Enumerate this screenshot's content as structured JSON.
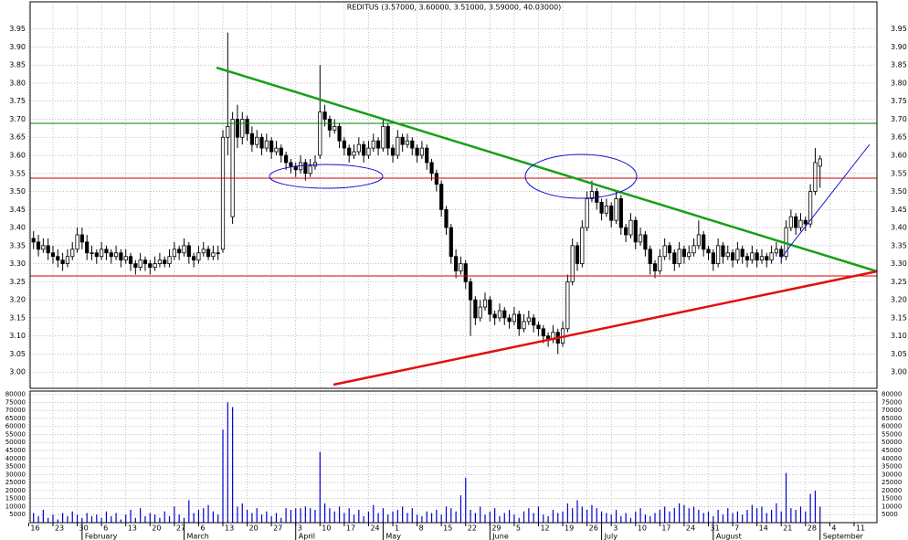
{
  "chart_data": {
    "type": "candlestick",
    "title": "REDITUS (3.57000, 3.60000, 3.51000, 3.59000, 40.03000)",
    "categories": [
      "16",
      null,
      null,
      null,
      null,
      "23",
      null,
      null,
      null,
      null,
      "30",
      null,
      null,
      null,
      null,
      "6",
      null,
      null,
      null,
      null,
      "13",
      null,
      null,
      null,
      null,
      "20",
      null,
      null,
      null,
      null,
      "27",
      null,
      null,
      null,
      null,
      "6",
      null,
      null,
      null,
      null,
      "13",
      null,
      null,
      null,
      null,
      "20",
      null,
      null,
      null,
      null,
      "27",
      null,
      null,
      null,
      null,
      "3",
      null,
      null,
      null,
      null,
      "10",
      null,
      null,
      null,
      null,
      "17",
      null,
      null,
      null,
      null,
      "24",
      null,
      null,
      null,
      null,
      "1",
      null,
      null,
      null,
      null,
      "8",
      null,
      null,
      null,
      null,
      "15",
      null,
      null,
      null,
      null,
      "22",
      null,
      null,
      null,
      null,
      "29",
      null,
      null,
      null,
      null,
      "5",
      null,
      null,
      null,
      null,
      "12",
      null,
      null,
      null,
      null,
      "19",
      null,
      null,
      null,
      null,
      "26",
      null,
      null,
      null,
      null,
      "3",
      null,
      null,
      null,
      null,
      "10",
      null,
      null,
      null,
      null,
      "17",
      null,
      null,
      null,
      null,
      "24",
      null,
      null,
      null,
      null,
      "31",
      null,
      null,
      null,
      null,
      "7",
      null,
      null,
      null,
      null,
      "14",
      null,
      null,
      null,
      null,
      "21",
      null,
      null,
      null,
      null,
      "28",
      null,
      null,
      null,
      null,
      "4",
      null,
      null,
      null,
      null,
      "11",
      null,
      null,
      null,
      null
    ],
    "months": [
      "February",
      "March",
      "April",
      "May",
      "June",
      "July",
      "August",
      "September"
    ],
    "ohlc": [
      null,
      [
        3.37,
        3.39,
        3.34,
        3.36
      ],
      [
        3.36,
        3.38,
        3.32,
        3.34
      ],
      [
        3.34,
        3.37,
        3.33,
        3.35
      ],
      [
        3.35,
        3.37,
        3.31,
        3.33
      ],
      [
        3.33,
        3.35,
        3.3,
        3.32
      ],
      [
        3.32,
        3.34,
        3.29,
        3.31
      ],
      [
        3.31,
        3.33,
        3.28,
        3.3
      ],
      [
        3.3,
        3.34,
        3.29,
        3.32
      ],
      [
        3.32,
        3.36,
        3.31,
        3.34
      ],
      [
        3.34,
        3.4,
        3.33,
        3.38
      ],
      [
        3.38,
        3.4,
        3.34,
        3.36
      ],
      [
        3.36,
        3.38,
        3.31,
        3.33
      ],
      [
        3.33,
        3.35,
        3.31,
        3.33
      ],
      [
        3.33,
        3.34,
        3.3,
        3.32
      ],
      [
        3.32,
        3.36,
        3.31,
        3.34
      ],
      [
        3.34,
        3.35,
        3.31,
        3.33
      ],
      [
        3.33,
        3.34,
        3.3,
        3.32
      ],
      [
        3.32,
        3.35,
        3.31,
        3.33
      ],
      [
        3.33,
        3.34,
        3.29,
        3.31
      ],
      [
        3.31,
        3.34,
        3.3,
        3.32
      ],
      [
        3.32,
        3.33,
        3.28,
        3.3
      ],
      [
        3.3,
        3.31,
        3.27,
        3.29
      ],
      [
        3.29,
        3.33,
        3.28,
        3.31
      ],
      [
        3.31,
        3.32,
        3.28,
        3.3
      ],
      [
        3.3,
        3.31,
        3.27,
        3.29
      ],
      [
        3.29,
        3.32,
        3.28,
        3.3
      ],
      [
        3.3,
        3.33,
        3.29,
        3.31
      ],
      [
        3.31,
        3.32,
        3.29,
        3.3
      ],
      [
        3.3,
        3.34,
        3.29,
        3.32
      ],
      [
        3.32,
        3.36,
        3.31,
        3.34
      ],
      [
        3.34,
        3.35,
        3.31,
        3.33
      ],
      [
        3.33,
        3.37,
        3.32,
        3.35
      ],
      [
        3.35,
        3.36,
        3.3,
        3.32
      ],
      [
        3.32,
        3.33,
        3.29,
        3.31
      ],
      [
        3.31,
        3.35,
        3.3,
        3.33
      ],
      [
        3.33,
        3.36,
        3.32,
        3.34
      ],
      [
        3.34,
        3.35,
        3.31,
        3.32
      ],
      [
        3.32,
        3.35,
        3.31,
        3.33
      ],
      [
        3.33,
        3.35,
        3.31,
        3.33
      ],
      [
        3.34,
        3.67,
        3.33,
        3.65
      ],
      [
        3.65,
        3.94,
        3.6,
        3.68
      ],
      [
        3.43,
        3.72,
        3.41,
        3.7
      ],
      [
        3.7,
        3.74,
        3.62,
        3.65
      ],
      [
        3.65,
        3.72,
        3.63,
        3.7
      ],
      [
        3.7,
        3.71,
        3.64,
        3.66
      ],
      [
        3.66,
        3.68,
        3.61,
        3.63
      ],
      [
        3.63,
        3.67,
        3.62,
        3.65
      ],
      [
        3.65,
        3.66,
        3.6,
        3.62
      ],
      [
        3.62,
        3.66,
        3.61,
        3.64
      ],
      [
        3.64,
        3.65,
        3.59,
        3.61
      ],
      [
        3.61,
        3.64,
        3.6,
        3.62
      ],
      [
        3.62,
        3.63,
        3.58,
        3.6
      ],
      [
        3.6,
        3.61,
        3.56,
        3.58
      ],
      [
        3.58,
        3.59,
        3.55,
        3.57
      ],
      [
        3.57,
        3.58,
        3.54,
        3.56
      ],
      [
        3.56,
        3.6,
        3.55,
        3.58
      ],
      [
        3.58,
        3.59,
        3.53,
        3.55
      ],
      [
        3.55,
        3.59,
        3.54,
        3.57
      ],
      [
        3.57,
        3.6,
        3.56,
        3.58
      ],
      [
        3.6,
        3.85,
        3.59,
        3.72
      ],
      [
        3.72,
        3.74,
        3.68,
        3.7
      ],
      [
        3.7,
        3.71,
        3.65,
        3.67
      ],
      [
        3.67,
        3.7,
        3.66,
        3.68
      ],
      [
        3.68,
        3.69,
        3.62,
        3.64
      ],
      [
        3.64,
        3.65,
        3.6,
        3.62
      ],
      [
        3.62,
        3.63,
        3.58,
        3.6
      ],
      [
        3.6,
        3.63,
        3.59,
        3.61
      ],
      [
        3.61,
        3.65,
        3.6,
        3.63
      ],
      [
        3.63,
        3.64,
        3.58,
        3.6
      ],
      [
        3.6,
        3.64,
        3.59,
        3.62
      ],
      [
        3.62,
        3.66,
        3.61,
        3.64
      ],
      [
        3.64,
        3.65,
        3.6,
        3.62
      ],
      [
        3.62,
        3.7,
        3.61,
        3.68
      ],
      [
        3.68,
        3.69,
        3.6,
        3.62
      ],
      [
        3.62,
        3.63,
        3.58,
        3.6
      ],
      [
        3.6,
        3.67,
        3.59,
        3.65
      ],
      [
        3.65,
        3.66,
        3.61,
        3.63
      ],
      [
        3.63,
        3.66,
        3.62,
        3.64
      ],
      [
        3.64,
        3.65,
        3.6,
        3.62
      ],
      [
        3.62,
        3.63,
        3.58,
        3.6
      ],
      [
        3.6,
        3.64,
        3.59,
        3.62
      ],
      [
        3.62,
        3.63,
        3.56,
        3.58
      ],
      [
        3.58,
        3.59,
        3.53,
        3.55
      ],
      [
        3.55,
        3.56,
        3.5,
        3.52
      ],
      [
        3.52,
        3.53,
        3.43,
        3.45
      ],
      [
        3.45,
        3.46,
        3.38,
        3.4
      ],
      [
        3.4,
        3.41,
        3.3,
        3.32
      ],
      [
        3.32,
        3.34,
        3.26,
        3.28
      ],
      [
        3.28,
        3.32,
        3.27,
        3.3
      ],
      [
        3.3,
        3.31,
        3.23,
        3.25
      ],
      [
        3.25,
        3.26,
        3.1,
        3.2
      ],
      [
        3.2,
        3.21,
        3.13,
        3.15
      ],
      [
        3.15,
        3.2,
        3.14,
        3.18
      ],
      [
        3.18,
        3.22,
        3.17,
        3.2
      ],
      [
        3.2,
        3.21,
        3.14,
        3.16
      ],
      [
        3.16,
        3.17,
        3.13,
        3.15
      ],
      [
        3.15,
        3.19,
        3.14,
        3.17
      ],
      [
        3.17,
        3.18,
        3.13,
        3.15
      ],
      [
        3.15,
        3.16,
        3.12,
        3.14
      ],
      [
        3.14,
        3.18,
        3.13,
        3.16
      ],
      [
        3.16,
        3.17,
        3.1,
        3.12
      ],
      [
        3.12,
        3.16,
        3.11,
        3.14
      ],
      [
        3.14,
        3.17,
        3.13,
        3.15
      ],
      [
        3.15,
        3.16,
        3.11,
        3.13
      ],
      [
        3.13,
        3.14,
        3.1,
        3.12
      ],
      [
        3.12,
        3.13,
        3.08,
        3.1
      ],
      [
        3.1,
        3.11,
        3.07,
        3.09
      ],
      [
        3.09,
        3.13,
        3.08,
        3.11
      ],
      [
        3.11,
        3.12,
        3.05,
        3.08
      ],
      [
        3.08,
        3.14,
        3.07,
        3.12
      ],
      [
        3.12,
        3.27,
        3.11,
        3.25
      ],
      [
        3.25,
        3.37,
        3.24,
        3.35
      ],
      [
        3.35,
        3.36,
        3.28,
        3.3
      ],
      [
        3.3,
        3.42,
        3.29,
        3.4
      ],
      [
        3.4,
        3.5,
        3.39,
        3.48
      ],
      [
        3.48,
        3.53,
        3.47,
        3.5
      ],
      [
        3.5,
        3.51,
        3.45,
        3.47
      ],
      [
        3.47,
        3.48,
        3.42,
        3.44
      ],
      [
        3.44,
        3.48,
        3.43,
        3.46
      ],
      [
        3.46,
        3.47,
        3.4,
        3.42
      ],
      [
        3.42,
        3.5,
        3.41,
        3.48
      ],
      [
        3.48,
        3.49,
        3.38,
        3.4
      ],
      [
        3.4,
        3.41,
        3.36,
        3.38
      ],
      [
        3.38,
        3.44,
        3.37,
        3.42
      ],
      [
        3.42,
        3.43,
        3.34,
        3.36
      ],
      [
        3.36,
        3.4,
        3.35,
        3.38
      ],
      [
        3.38,
        3.39,
        3.32,
        3.34
      ],
      [
        3.34,
        3.35,
        3.27,
        3.3
      ],
      [
        3.3,
        3.31,
        3.26,
        3.28
      ],
      [
        3.28,
        3.34,
        3.27,
        3.32
      ],
      [
        3.32,
        3.37,
        3.31,
        3.35
      ],
      [
        3.35,
        3.36,
        3.31,
        3.33
      ],
      [
        3.33,
        3.34,
        3.28,
        3.3
      ],
      [
        3.3,
        3.36,
        3.29,
        3.34
      ],
      [
        3.34,
        3.35,
        3.3,
        3.32
      ],
      [
        3.32,
        3.35,
        3.31,
        3.33
      ],
      [
        3.33,
        3.37,
        3.32,
        3.35
      ],
      [
        3.35,
        3.42,
        3.34,
        3.38
      ],
      [
        3.38,
        3.39,
        3.32,
        3.34
      ],
      [
        3.34,
        3.35,
        3.31,
        3.33
      ],
      [
        3.33,
        3.34,
        3.28,
        3.3
      ],
      [
        3.3,
        3.37,
        3.29,
        3.35
      ],
      [
        3.35,
        3.36,
        3.3,
        3.32
      ],
      [
        3.32,
        3.35,
        3.31,
        3.33
      ],
      [
        3.33,
        3.34,
        3.29,
        3.31
      ],
      [
        3.31,
        3.36,
        3.3,
        3.34
      ],
      [
        3.34,
        3.35,
        3.3,
        3.32
      ],
      [
        3.32,
        3.33,
        3.29,
        3.31
      ],
      [
        3.31,
        3.35,
        3.3,
        3.33
      ],
      [
        3.33,
        3.34,
        3.29,
        3.31
      ],
      [
        3.31,
        3.34,
        3.3,
        3.32
      ],
      [
        3.32,
        3.33,
        3.29,
        3.31
      ],
      [
        3.31,
        3.35,
        3.3,
        3.33
      ],
      [
        3.33,
        3.36,
        3.32,
        3.34
      ],
      [
        3.34,
        3.35,
        3.3,
        3.32
      ],
      [
        3.32,
        3.42,
        3.31,
        3.4
      ],
      [
        3.4,
        3.45,
        3.39,
        3.43
      ],
      [
        3.43,
        3.44,
        3.38,
        3.4
      ],
      [
        3.4,
        3.44,
        3.39,
        3.42
      ],
      [
        3.42,
        3.43,
        3.39,
        3.41
      ],
      [
        3.41,
        3.52,
        3.4,
        3.5
      ],
      [
        3.5,
        3.62,
        3.49,
        3.58
      ],
      [
        3.57,
        3.6,
        3.51,
        3.59
      ],
      null,
      null,
      null,
      null,
      null,
      null,
      null,
      null,
      null,
      null,
      null
    ],
    "volume": [
      null,
      6000,
      4000,
      8000,
      3000,
      5000,
      2000,
      6000,
      4000,
      7000,
      5000,
      3000,
      6000,
      4000,
      5000,
      3000,
      7000,
      4000,
      6000,
      2000,
      5000,
      8000,
      3000,
      9000,
      4000,
      6000,
      5000,
      3000,
      7000,
      4000,
      10000,
      5000,
      3000,
      14000,
      6000,
      8000,
      9000,
      11000,
      7000,
      5000,
      58000,
      75000,
      72000,
      10000,
      12000,
      8000,
      6000,
      9000,
      5000,
      7000,
      4000,
      6000,
      3000,
      9000,
      8000,
      9000,
      9000,
      10000,
      9000,
      8000,
      44000,
      12000,
      9000,
      7000,
      10000,
      6000,
      9000,
      5000,
      8000,
      4000,
      7000,
      11000,
      6000,
      9000,
      5000,
      7000,
      8000,
      10000,
      6000,
      9000,
      5000,
      4000,
      7000,
      6000,
      8000,
      5000,
      10000,
      9000,
      7000,
      17000,
      28000,
      8000,
      6000,
      10000,
      5000,
      7000,
      9000,
      4000,
      6000,
      8000,
      5000,
      3000,
      7000,
      9000,
      6000,
      10000,
      5000,
      4000,
      8000,
      6000,
      7000,
      12000,
      9000,
      14000,
      10000,
      8000,
      11000,
      9000,
      7000,
      6000,
      5000,
      8000,
      4000,
      6000,
      3000,
      7000,
      9000,
      5000,
      4000,
      6000,
      8000,
      10000,
      7000,
      9000,
      12000,
      11000,
      9000,
      10000,
      8000,
      6000,
      7000,
      4000,
      8000,
      5000,
      9000,
      6000,
      7000,
      5000,
      8000,
      11000,
      9000,
      10000,
      6000,
      8000,
      12000,
      7000,
      31000,
      9000,
      8000,
      10000,
      7000,
      18000,
      20000,
      10000,
      null,
      null,
      null,
      null,
      null,
      null,
      null,
      null,
      null,
      null,
      null
    ],
    "ylim": [
      2.955,
      4.025
    ],
    "yticks": [
      {
        "value": 3.0,
        "label": "3.00"
      },
      {
        "value": 3.05,
        "label": "3.05"
      },
      {
        "value": 3.1,
        "label": "3.10"
      },
      {
        "value": 3.15,
        "label": "3.15"
      },
      {
        "value": 3.2,
        "label": "3.20"
      },
      {
        "value": 3.25,
        "label": "3.25"
      },
      {
        "value": 3.3,
        "label": "3.30"
      },
      {
        "value": 3.35,
        "label": "3.35"
      },
      {
        "value": 3.4,
        "label": "3.40"
      },
      {
        "value": 3.45,
        "label": "3.45"
      },
      {
        "value": 3.5,
        "label": "3.50"
      },
      {
        "value": 3.55,
        "label": "3.55"
      },
      {
        "value": 3.6,
        "label": "3.60"
      },
      {
        "value": 3.65,
        "label": "3.65"
      },
      {
        "value": 3.7,
        "label": "3.70"
      },
      {
        "value": 3.75,
        "label": "3.75"
      },
      {
        "value": 3.8,
        "label": "3.80"
      },
      {
        "value": 3.85,
        "label": "3.85"
      },
      {
        "value": 3.9,
        "label": "3.90"
      },
      {
        "value": 3.95,
        "label": "3.95"
      }
    ],
    "volume_ylim": [
      0,
      82000
    ],
    "volume_yticks": [
      5000,
      10000,
      15000,
      20000,
      25000,
      30000,
      35000,
      40000,
      45000,
      50000,
      55000,
      60000,
      65000,
      70000,
      75000,
      80000
    ],
    "grid": true,
    "candle_color": "#000000",
    "volume_color": "#0000cc"
  }
}
